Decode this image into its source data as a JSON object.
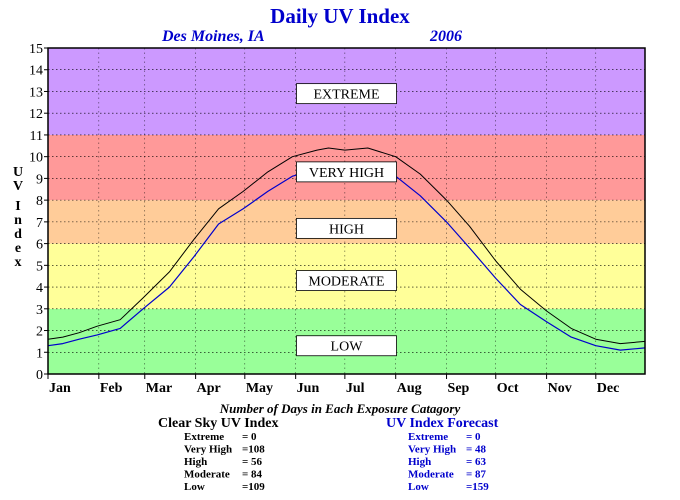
{
  "chart_data": {
    "type": "line",
    "title": "Daily UV Index",
    "location": "Des Moines, IA",
    "year": "2006",
    "ylabel": "UV Index",
    "ylim": [
      0,
      15
    ],
    "yticks": [
      "0",
      "1",
      "2",
      "3",
      "4",
      "5",
      "6",
      "7",
      "8",
      "9",
      "10",
      "11",
      "12",
      "13",
      "14",
      "15"
    ],
    "xlim": [
      1,
      365
    ],
    "months": [
      {
        "label": "Jan",
        "day": 1
      },
      {
        "label": "Feb",
        "day": 32
      },
      {
        "label": "Mar",
        "day": 60
      },
      {
        "label": "Apr",
        "day": 91
      },
      {
        "label": "May",
        "day": 121
      },
      {
        "label": "Jun",
        "day": 152
      },
      {
        "label": "Jul",
        "day": 182
      },
      {
        "label": "Aug",
        "day": 213
      },
      {
        "label": "Sep",
        "day": 244
      },
      {
        "label": "Oct",
        "day": 274
      },
      {
        "label": "Nov",
        "day": 305
      },
      {
        "label": "Dec",
        "day": 335
      }
    ],
    "grid": true,
    "bands": [
      {
        "label": "LOW",
        "from": 0,
        "to": 3,
        "color": "#99ff99",
        "label_y": 1.3
      },
      {
        "label": "MODERATE",
        "from": 3,
        "to": 6,
        "color": "#ffff99",
        "label_y": 4.3
      },
      {
        "label": "HIGH",
        "from": 6,
        "to": 8,
        "color": "#ffcc99",
        "label_y": 6.7
      },
      {
        "label": "VERY HIGH",
        "from": 8,
        "to": 11,
        "color": "#ff9999",
        "label_y": 9.3
      },
      {
        "label": "EXTREME",
        "from": 11,
        "to": 15,
        "color": "#cc99ff",
        "label_y": 12.9
      }
    ],
    "series": [
      {
        "name": "Clear Sky UV Index",
        "color": "#000000",
        "points": [
          [
            1,
            1.6
          ],
          [
            10,
            1.7
          ],
          [
            20,
            1.9
          ],
          [
            31,
            2.2
          ],
          [
            45,
            2.5
          ],
          [
            59,
            3.5
          ],
          [
            75,
            4.7
          ],
          [
            90,
            6.2
          ],
          [
            105,
            7.6
          ],
          [
            120,
            8.4
          ],
          [
            135,
            9.3
          ],
          [
            150,
            10.0
          ],
          [
            165,
            10.3
          ],
          [
            172,
            10.4
          ],
          [
            182,
            10.3
          ],
          [
            196,
            10.4
          ],
          [
            213,
            10.0
          ],
          [
            228,
            9.2
          ],
          [
            244,
            8.0
          ],
          [
            258,
            6.8
          ],
          [
            274,
            5.2
          ],
          [
            289,
            3.9
          ],
          [
            305,
            2.9
          ],
          [
            320,
            2.1
          ],
          [
            335,
            1.6
          ],
          [
            350,
            1.4
          ],
          [
            365,
            1.5
          ]
        ]
      },
      {
        "name": "UV Index Forecast",
        "color": "#0000cc",
        "points": [
          [
            1,
            1.3
          ],
          [
            10,
            1.4
          ],
          [
            20,
            1.6
          ],
          [
            31,
            1.8
          ],
          [
            45,
            2.1
          ],
          [
            59,
            3.0
          ],
          [
            75,
            4.0
          ],
          [
            90,
            5.4
          ],
          [
            105,
            6.9
          ],
          [
            120,
            7.6
          ],
          [
            135,
            8.4
          ],
          [
            150,
            9.1
          ],
          [
            165,
            9.4
          ],
          [
            172,
            9.5
          ],
          [
            182,
            9.4
          ],
          [
            196,
            9.5
          ],
          [
            213,
            9.1
          ],
          [
            228,
            8.2
          ],
          [
            244,
            7.0
          ],
          [
            258,
            5.8
          ],
          [
            274,
            4.4
          ],
          [
            289,
            3.2
          ],
          [
            305,
            2.4
          ],
          [
            320,
            1.7
          ],
          [
            335,
            1.3
          ],
          [
            350,
            1.1
          ],
          [
            365,
            1.2
          ]
        ]
      }
    ]
  },
  "summary": {
    "heading": "Number of Days in Each Exposure Catagory",
    "clear_sky": {
      "title": "Clear Sky UV Index",
      "rows": [
        {
          "label": "Extreme",
          "value": "=     0"
        },
        {
          "label": "Very High",
          "value": "=108"
        },
        {
          "label": "High",
          "value": "=   56"
        },
        {
          "label": "Moderate",
          "value": "=   84"
        },
        {
          "label": "Low",
          "value": "=109"
        }
      ]
    },
    "forecast": {
      "title": "UV Index Forecast",
      "rows": [
        {
          "label": "Extreme",
          "value": "=     0"
        },
        {
          "label": "Very High",
          "value": "=   48"
        },
        {
          "label": "High",
          "value": "=   63"
        },
        {
          "label": "Moderate",
          "value": "=   87"
        },
        {
          "label": "Low",
          "value": "=159"
        }
      ]
    }
  },
  "colors": {
    "title": "#0000cc",
    "forecast": "#0000cc",
    "clear_sky": "#000000"
  }
}
